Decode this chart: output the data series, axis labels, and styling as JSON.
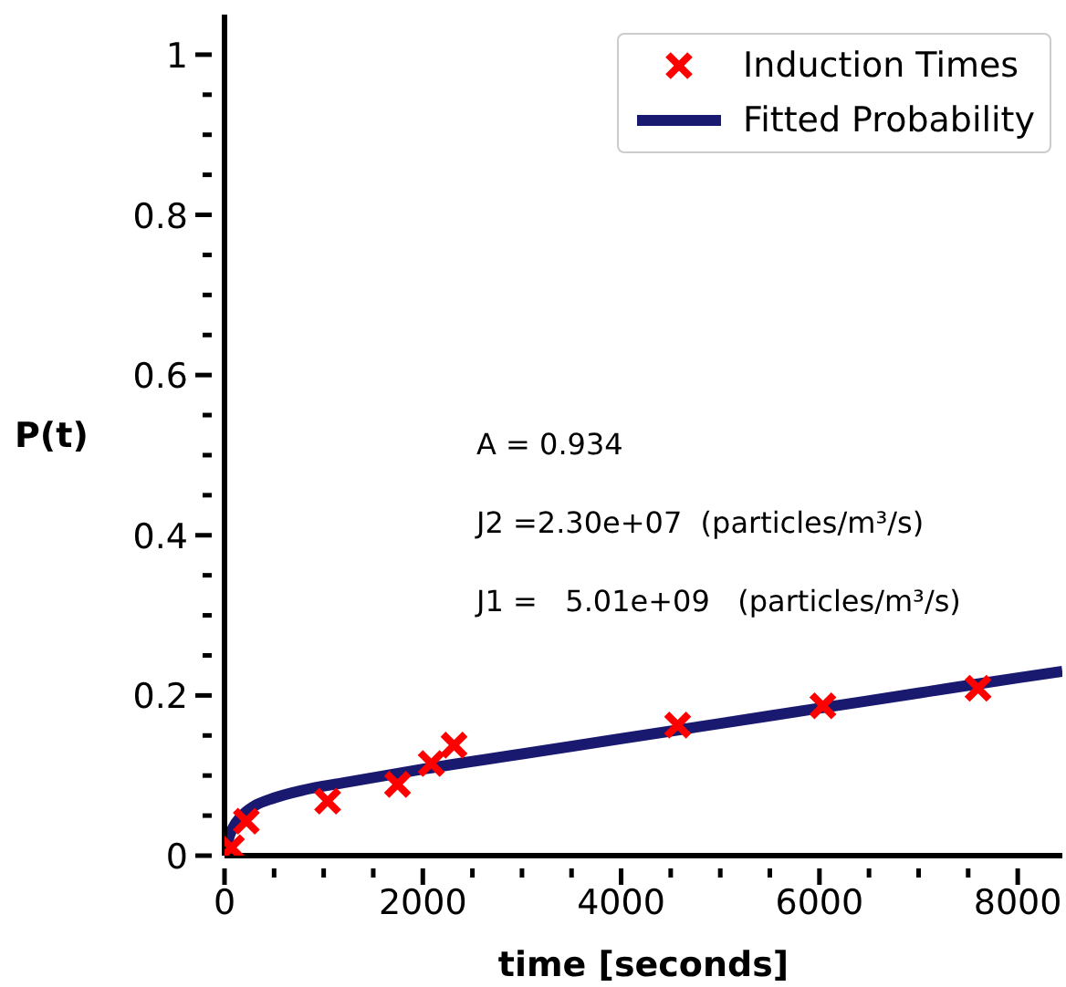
{
  "chart_data": {
    "type": "scatter",
    "xlabel": "time [seconds]",
    "ylabel": "P(t)",
    "xlim": [
      0,
      8450
    ],
    "ylim": [
      0,
      1.05
    ],
    "xticks": [
      0,
      {
        "value": 500,
        "label": null
      },
      2000,
      {
        "value": 1000,
        "label": null
      },
      {
        "value": 1500,
        "label": null
      },
      {
        "value": 2500,
        "label": null
      },
      {
        "value": 3000,
        "label": null
      },
      {
        "value": 3500,
        "label": null
      },
      4000,
      {
        "value": 4500,
        "label": null
      },
      {
        "value": 5000,
        "label": null
      },
      {
        "value": 5500,
        "label": null
      },
      6000,
      {
        "value": 6500,
        "label": null
      },
      {
        "value": 7000,
        "label": null
      },
      {
        "value": 7500,
        "label": null
      },
      8000
    ],
    "yticks": [
      0,
      {
        "value": 0.05,
        "label": null
      },
      {
        "value": 0.1,
        "label": null
      },
      {
        "value": 0.15,
        "label": null
      },
      0.2,
      {
        "value": 0.25,
        "label": null
      },
      {
        "value": 0.3,
        "label": null
      },
      {
        "value": 0.35,
        "label": null
      },
      0.4,
      {
        "value": 0.45,
        "label": null
      },
      {
        "value": 0.5,
        "label": null
      },
      {
        "value": 0.55,
        "label": null
      },
      0.6,
      {
        "value": 0.65,
        "label": null
      },
      {
        "value": 0.7,
        "label": null
      },
      {
        "value": 0.75,
        "label": null
      },
      0.8,
      {
        "value": 0.85,
        "label": null
      },
      {
        "value": 0.9,
        "label": null
      },
      {
        "value": 0.95,
        "label": null
      },
      1
    ],
    "grid": false,
    "legend": "top right",
    "series": [
      {
        "name": "Induction Times",
        "marker": "cross",
        "color": "#ff0000",
        "x": [
          70,
          220,
          1040,
          1745,
          2085,
          2315,
          4570,
          6035,
          7600
        ],
        "values": [
          0.01,
          0.043,
          0.068,
          0.089,
          0.115,
          0.138,
          0.163,
          0.187,
          0.209
        ]
      },
      {
        "name": "Fitted Probability",
        "type": "line",
        "marker": "none",
        "line_style": "solid",
        "color": "#191970",
        "x": [
          0,
          50,
          100,
          200,
          300,
          500,
          800,
          1200,
          2000,
          3000,
          4000,
          5000,
          6000,
          7000,
          8000,
          8450
        ],
        "values": [
          0,
          0.025,
          0.038,
          0.053,
          0.062,
          0.072,
          0.082,
          0.091,
          0.108,
          0.127,
          0.146,
          0.165,
          0.184,
          0.203,
          0.222,
          0.23
        ]
      }
    ],
    "annotations": [
      "A = 0.934",
      "J2 =2.30e+07  (particles/m³/s)",
      "J1 =   5.01e+09   (particles/m³/s)"
    ]
  }
}
